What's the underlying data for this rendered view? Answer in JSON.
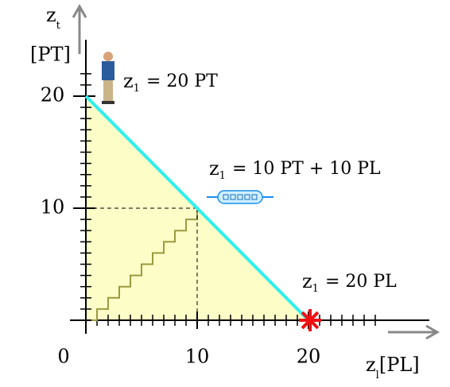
{
  "y_axis": {
    "symbol": "z",
    "subscript": "t",
    "unit": "[PT]",
    "ticks": [
      10,
      20
    ]
  },
  "x_axis": {
    "symbol": "z",
    "subscript": "l",
    "unit": "[PL]",
    "ticks": [
      0,
      10,
      20
    ]
  },
  "frontier": {
    "start": [
      0,
      20
    ],
    "end": [
      20,
      0
    ]
  },
  "annotations": [
    {
      "symbol": "z",
      "subscript": "1",
      "text": "= 20 PT",
      "point": [
        0,
        20
      ]
    },
    {
      "symbol": "z",
      "subscript": "1",
      "text": "= 10 PT + 10 PL",
      "point": [
        10,
        10
      ]
    },
    {
      "symbol": "z",
      "subscript": "1",
      "text": "= 20 PL",
      "point": [
        20,
        0
      ]
    }
  ]
}
